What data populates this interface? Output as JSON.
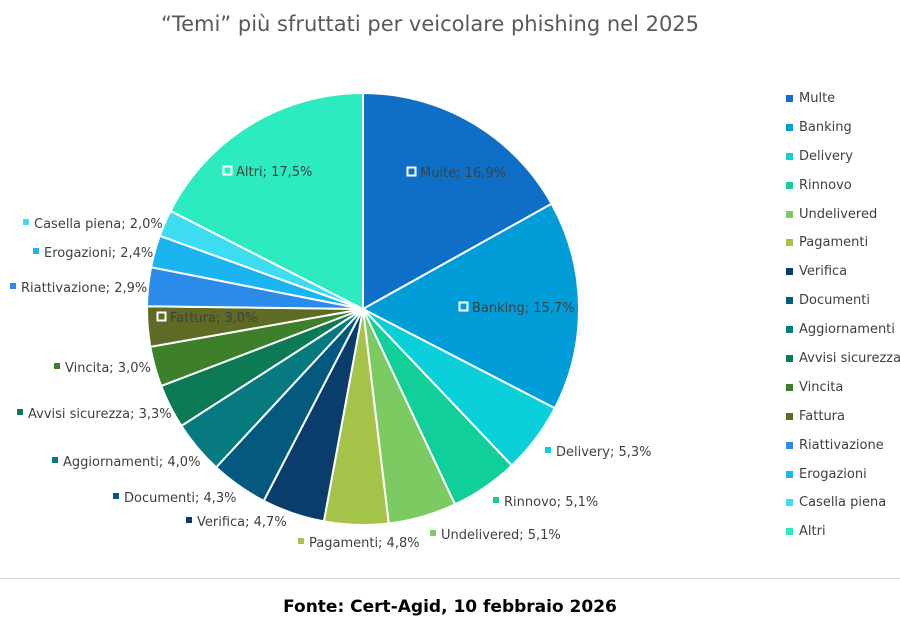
{
  "chart_data": {
    "type": "pie",
    "title": "“Temi” più sfruttati per veicolare phishing nel 2025",
    "legend_position": "right",
    "slices": [
      {
        "label": "Multe",
        "value": 16.9,
        "label_text": "Multe; 16,9%",
        "color": "#0F6FC6"
      },
      {
        "label": "Banking",
        "value": 15.7,
        "label_text": "Banking; 15,7%",
        "color": "#009DD9"
      },
      {
        "label": "Delivery",
        "value": 5.3,
        "label_text": "Delivery; 5,3%",
        "color": "#0BD0D9"
      },
      {
        "label": "Rinnovo",
        "value": 5.1,
        "label_text": "Rinnovo; 5,1%",
        "color": "#10CF9B"
      },
      {
        "label": "Undelivered",
        "value": 5.1,
        "label_text": "Undelivered; 5,1%",
        "color": "#7CCA62"
      },
      {
        "label": "Pagamenti",
        "value": 4.8,
        "label_text": "Pagamenti; 4,8%",
        "color": "#A5C249"
      },
      {
        "label": "Verifica",
        "value": 4.7,
        "label_text": "Verifica; 4,7%",
        "color": "#0A3D6B"
      },
      {
        "label": "Documenti",
        "value": 4.3,
        "label_text": "Documenti; 4,3%",
        "color": "#035A7E"
      },
      {
        "label": "Aggiornamenti",
        "value": 4.0,
        "label_text": "Aggiornamenti; 4,0%",
        "color": "#077A7F"
      },
      {
        "label": "Avvisi sicurezza",
        "value": 3.3,
        "label_text": "Avvisi sicurezza; 3,3%",
        "color": "#0B7A55"
      },
      {
        "label": "Vincita",
        "value": 3.0,
        "label_text": "Vincita; 3,0%",
        "color": "#3E7F2A"
      },
      {
        "label": "Fattura",
        "value": 3.0,
        "label_text": "Fattura; 3,0%",
        "color": "#5E6B24"
      },
      {
        "label": "Riattivazione",
        "value": 2.9,
        "label_text": "Riattivazione; 2,9%",
        "color": "#2B8BE8"
      },
      {
        "label": "Erogazioni",
        "value": 2.4,
        "label_text": "Erogazioni; 2,4%",
        "color": "#1AB4F0"
      },
      {
        "label": "Casella piena",
        "value": 2.0,
        "label_text": "Casella piena; 2,0%",
        "color": "#3EDCF0"
      },
      {
        "label": "Altri",
        "value": 17.5,
        "label_text": "Altri; 17,5%",
        "color": "#2CEBC0"
      }
    ]
  },
  "footer": {
    "source": "Fonte: Cert-Agid, 10 febbraio 2026"
  }
}
